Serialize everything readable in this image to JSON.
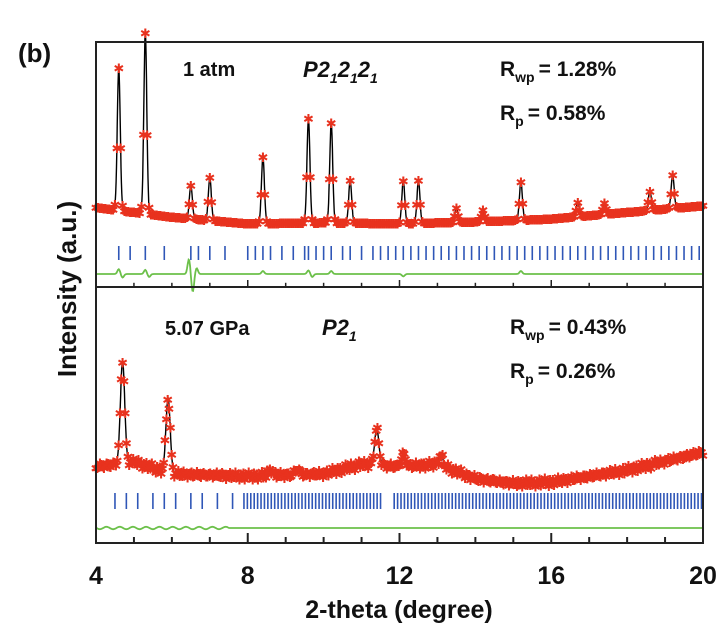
{
  "panel_label": "(b)",
  "chart_data": [
    {
      "type": "line",
      "panel": "top",
      "pressure": "1 atm",
      "space_group": {
        "base": "P2",
        "sub": "1",
        "parts": [
          "P2",
          "1",
          "2",
          "1",
          "2",
          "1"
        ]
      },
      "rwp": {
        "text": "R",
        "sub": "wp",
        "value": "= 1.28%"
      },
      "rp": {
        "text": "R",
        "sub": "p",
        "value": "= 0.58%"
      },
      "background": [
        [
          4,
          0.3
        ],
        [
          6,
          0.2
        ],
        [
          8,
          0.13
        ],
        [
          10,
          0.14
        ],
        [
          12,
          0.13
        ],
        [
          14,
          0.15
        ],
        [
          16,
          0.18
        ],
        [
          18,
          0.25
        ],
        [
          20,
          0.32
        ]
      ],
      "peaks": [
        [
          4.6,
          1.5
        ],
        [
          5.3,
          1.9
        ],
        [
          6.5,
          0.35
        ],
        [
          7.0,
          0.45
        ],
        [
          8.4,
          0.7
        ],
        [
          9.6,
          1.1
        ],
        [
          10.2,
          1.05
        ],
        [
          10.7,
          0.45
        ],
        [
          12.1,
          0.45
        ],
        [
          12.5,
          0.45
        ],
        [
          13.5,
          0.15
        ],
        [
          14.2,
          0.12
        ],
        [
          15.2,
          0.4
        ],
        [
          16.7,
          0.15
        ],
        [
          17.4,
          0.12
        ],
        [
          18.6,
          0.2
        ],
        [
          19.2,
          0.35
        ]
      ],
      "tick_positions": [
        4.6,
        4.9,
        5.3,
        5.8,
        6.5,
        6.7,
        7.0,
        7.4,
        8.0,
        8.2,
        8.4,
        8.6,
        8.9,
        9.2,
        9.5,
        9.6,
        9.8,
        10.0,
        10.2,
        10.5,
        10.7,
        11.0,
        11.3,
        11.5,
        11.7,
        11.9,
        12.1,
        12.3,
        12.5,
        12.7,
        12.9,
        13.1,
        13.3,
        13.5,
        13.7,
        13.9,
        14.1,
        14.3,
        14.5,
        14.7,
        14.9,
        15.1,
        15.3,
        15.5,
        15.7,
        15.9,
        16.1,
        16.3,
        16.5,
        16.7,
        16.9,
        17.1,
        17.3,
        17.5,
        17.7,
        17.9,
        18.1,
        18.3,
        18.5,
        18.7,
        18.9,
        19.1,
        19.3,
        19.5,
        19.7,
        19.9
      ],
      "difference": [
        [
          4.5,
          0.0
        ],
        [
          4.6,
          0.08
        ],
        [
          4.7,
          -0.06
        ],
        [
          5.3,
          0.07
        ],
        [
          5.4,
          -0.05
        ],
        [
          6.45,
          0.25
        ],
        [
          6.55,
          -0.3
        ],
        [
          6.65,
          0.1
        ],
        [
          8.4,
          0.05
        ],
        [
          9.6,
          0.06
        ],
        [
          9.7,
          -0.05
        ],
        [
          10.2,
          0.05
        ],
        [
          12.1,
          -0.04
        ],
        [
          15.2,
          0.05
        ]
      ],
      "series": [
        {
          "name": "Observed",
          "color": "#e8321e",
          "marker": "asterisk"
        },
        {
          "name": "Calculated",
          "color": "#000000"
        },
        {
          "name": "Bragg positions",
          "color": "#2f56b7"
        },
        {
          "name": "Difference",
          "color": "#6cc04a"
        }
      ]
    },
    {
      "type": "line",
      "panel": "bottom",
      "pressure": "5.07 GPa",
      "space_group": {
        "base": "P2",
        "sub": "1"
      },
      "rwp": {
        "text": "R",
        "sub": "wp",
        "value": "= 0.43%"
      },
      "rp": {
        "text": "R",
        "sub": "p",
        "value": "= 0.26%"
      },
      "background": [
        [
          4,
          0.28
        ],
        [
          5,
          0.32
        ],
        [
          6,
          0.22
        ],
        [
          8,
          0.2
        ],
        [
          10,
          0.22
        ],
        [
          11,
          0.3
        ],
        [
          12,
          0.28
        ],
        [
          13,
          0.3
        ],
        [
          14,
          0.18
        ],
        [
          15,
          0.14
        ],
        [
          16,
          0.15
        ],
        [
          18,
          0.25
        ],
        [
          20,
          0.4
        ]
      ],
      "peaks": [
        [
          4.7,
          0.85
        ],
        [
          5.9,
          0.62
        ],
        [
          11.4,
          0.3
        ],
        [
          12.1,
          0.1
        ],
        [
          13.1,
          0.08
        ],
        [
          8.6,
          0.05
        ],
        [
          9.3,
          0.05
        ]
      ],
      "tick_positions": [
        4.5,
        4.8,
        5.1,
        5.5,
        5.8,
        6.1,
        6.5,
        6.8,
        7.2,
        7.6
      ],
      "dense_tick_range": [
        7.9,
        20.0
      ],
      "dense_tick_gap": [
        11.5,
        11.8
      ],
      "difference_wave": {
        "x_start": 4.0,
        "x_end": 7.5,
        "amplitude": 0.02
      },
      "series": [
        {
          "name": "Observed",
          "color": "#e8321e"
        },
        {
          "name": "Calculated",
          "color": "#000000"
        },
        {
          "name": "Bragg positions",
          "color": "#2f56b7"
        },
        {
          "name": "Difference",
          "color": "#6cc04a"
        }
      ]
    }
  ],
  "axes": {
    "xlabel": "2-theta (degree)",
    "ylabel": "Intensity (a.u.)",
    "xlim": [
      4,
      20
    ],
    "xticks": [
      "4",
      "8",
      "12",
      "16",
      "20"
    ],
    "xtick_values": [
      4,
      8,
      12,
      16,
      20
    ],
    "minor_step": 1
  }
}
